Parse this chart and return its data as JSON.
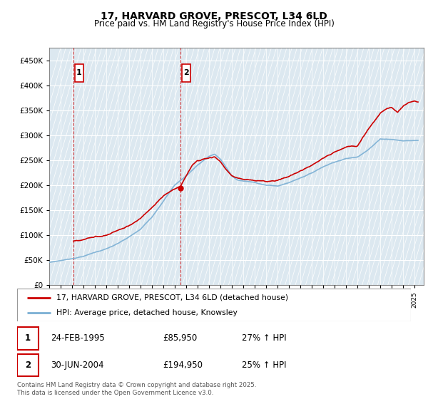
{
  "title": "17, HARVARD GROVE, PRESCOT, L34 6LD",
  "subtitle": "Price paid vs. HM Land Registry's House Price Index (HPI)",
  "legend_line1": "17, HARVARD GROVE, PRESCOT, L34 6LD (detached house)",
  "legend_line2": "HPI: Average price, detached house, Knowsley",
  "annotation1_date": "24-FEB-1995",
  "annotation1_price": "£85,950",
  "annotation1_hpi": "27% ↑ HPI",
  "annotation2_date": "30-JUN-2004",
  "annotation2_price": "£194,950",
  "annotation2_hpi": "25% ↑ HPI",
  "footer": "Contains HM Land Registry data © Crown copyright and database right 2025.\nThis data is licensed under the Open Government Licence v3.0.",
  "house_color": "#cc0000",
  "hpi_color": "#7aafd4",
  "ylim": [
    0,
    475000
  ],
  "yticks": [
    0,
    50000,
    100000,
    150000,
    200000,
    250000,
    300000,
    350000,
    400000,
    450000
  ],
  "xlim_start": 1993.0,
  "xlim_end": 2025.8,
  "sale1_x": 1995.12,
  "sale1_y": 85950,
  "sale2_x": 2004.49,
  "sale2_y": 194950
}
